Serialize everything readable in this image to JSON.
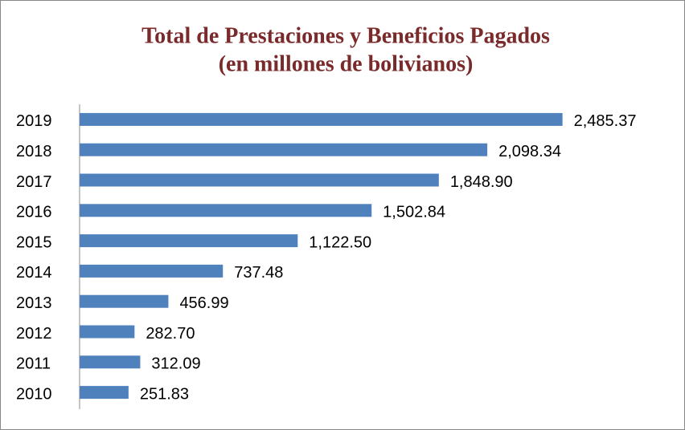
{
  "chart_data": {
    "type": "bar",
    "orientation": "horizontal",
    "title_lines": [
      "Total de Prestaciones y Beneficios Pagados",
      "(en millones de bolivianos)"
    ],
    "categories": [
      "2019",
      "2018",
      "2017",
      "2016",
      "2015",
      "2014",
      "2013",
      "2012",
      "2011",
      "2010"
    ],
    "values": [
      2485.37,
      2098.34,
      1848.9,
      1502.84,
      1122.5,
      737.48,
      456.99,
      282.7,
      312.09,
      251.83
    ],
    "value_labels": [
      "2,485.37",
      "2,098.34",
      "1,848.90",
      "1,502.84",
      "1,122.50",
      "737.48",
      "456.99",
      "282.70",
      "312.09",
      "251.83"
    ],
    "color": "#4f81bd",
    "xlim": [
      0,
      3000
    ]
  }
}
